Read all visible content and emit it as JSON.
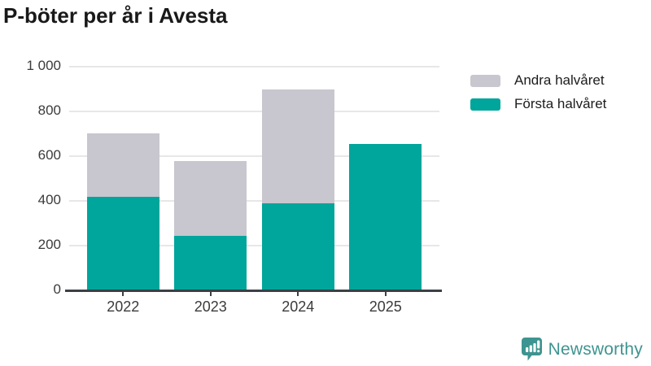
{
  "title": "P-böter per år i Avesta",
  "chart_data": {
    "type": "bar",
    "stacked": true,
    "title": "P-böter per år i Avesta",
    "categories": [
      "2022",
      "2023",
      "2024",
      "2025"
    ],
    "series": [
      {
        "name": "Första halvåret",
        "color": "#00a59b",
        "values": [
          418,
          245,
          390,
          655
        ]
      },
      {
        "name": "Andra halvåret",
        "color": "#c8c6ce",
        "values": [
          285,
          335,
          508,
          0
        ]
      }
    ],
    "stack_totals": [
      703,
      580,
      898,
      655
    ],
    "xlabel": "",
    "ylabel": "",
    "ylim": [
      0,
      1000
    ],
    "yticks": [
      0,
      200,
      400,
      600,
      800,
      1000
    ],
    "ytick_labels": [
      "0",
      "200",
      "400",
      "600",
      "800",
      "1 000"
    ],
    "grid": true,
    "legend_position": "top-right",
    "legend_order": [
      "Andra halvåret",
      "Första halvåret"
    ]
  },
  "branding": {
    "logo_text": "Newsworthy",
    "logo_icon": "newsworthy-speech-bubble-bar-chart-icon",
    "logo_color": "#3e9490"
  },
  "colors": {
    "background": "#ffffff",
    "first_half": "#00a59b",
    "second_half": "#c8c6ce",
    "gridline": "#e7e7e7",
    "axis": "#3b4045",
    "tick_text": "#3b3b3b",
    "title_text": "#191919"
  }
}
